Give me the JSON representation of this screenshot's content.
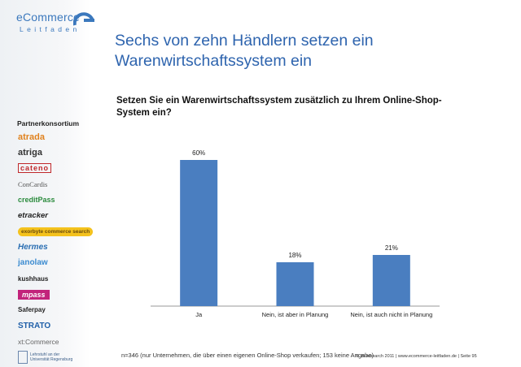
{
  "brand": {
    "name": "eCommerce",
    "sub": "Leitfaden"
  },
  "title": "Sechs von zehn Händlern setzen ein Warenwirtschaftssystem ein",
  "question": "Setzen Sie ein Warenwirtschaftssystem zusätzlich zu Ihrem Online-Shop-System ein?",
  "sidebar": {
    "heading": "Partnerkonsortium",
    "partners": [
      "atrada",
      "atriga",
      "cateno",
      "ConCardis",
      "creditPass",
      "etracker",
      "exorbyte commerce search",
      "Hermes",
      "janolaw",
      "kushhaus",
      "mpass",
      "Saferpay",
      "STRATO",
      "xt:Commerce",
      "Lehrstuhl an der Universität Regensburg"
    ]
  },
  "chart_data": {
    "type": "bar",
    "categories": [
      "Ja",
      "Nein, ist aber in Planung",
      "Nein, ist auch nicht in Planung"
    ],
    "values": [
      60,
      18,
      21
    ],
    "data_labels": [
      "60%",
      "18%",
      "21%"
    ],
    "ylim": [
      0,
      60
    ],
    "bar_color": "#4a7ec0",
    "grid": false,
    "legend": "none"
  },
  "footnote": "n=346 (nur Unternehmen, die über einen eigenen Online-Shop verkaufen; 153 keine Angabe)",
  "copyright": "© ibi research 2011 | www.ecommerce-leitfaden.de | Seite 95"
}
